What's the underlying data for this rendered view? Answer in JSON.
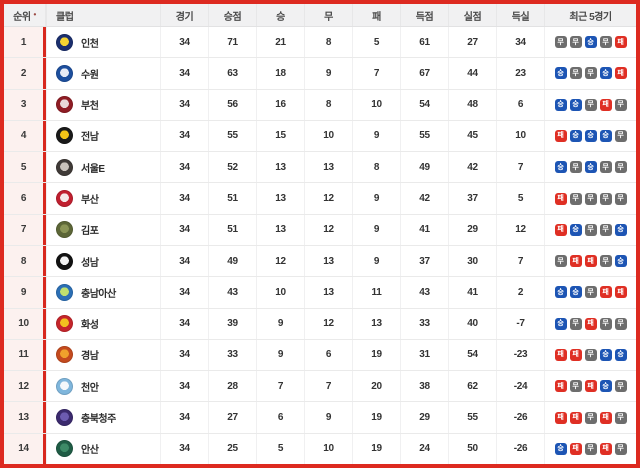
{
  "frame_color": "#dd2a20",
  "table": {
    "sort_indicator": "•",
    "columns": [
      {
        "key": "rank",
        "label": "순위",
        "sortable": true
      },
      {
        "key": "club",
        "label": "클럽"
      },
      {
        "key": "played",
        "label": "경기"
      },
      {
        "key": "points",
        "label": "승점"
      },
      {
        "key": "wins",
        "label": "승"
      },
      {
        "key": "draws",
        "label": "무"
      },
      {
        "key": "losses",
        "label": "패"
      },
      {
        "key": "goals_for",
        "label": "득점"
      },
      {
        "key": "goals_against",
        "label": "실점"
      },
      {
        "key": "goal_diff",
        "label": "득실"
      },
      {
        "key": "recent",
        "label": "최근 5경기"
      }
    ],
    "result_colors": {
      "승": "#1d55b4",
      "무": "#6d6d6d",
      "패": "#df2f24"
    },
    "result_names": {
      "승": "win",
      "무": "draw",
      "패": "loss"
    },
    "rows": [
      {
        "rank": 1,
        "club": "인천",
        "played": 34,
        "points": 71,
        "wins": 21,
        "draws": 8,
        "losses": 5,
        "goals_for": 61,
        "goals_against": 27,
        "goal_diff": 34,
        "recent": [
          "무",
          "무",
          "승",
          "무",
          "패"
        ],
        "logo_colors": [
          "#1b2f6e",
          "#f5d431"
        ]
      },
      {
        "rank": 2,
        "club": "수원",
        "played": 34,
        "points": 63,
        "wins": 18,
        "draws": 9,
        "losses": 7,
        "goals_for": 67,
        "goals_against": 44,
        "goal_diff": 23,
        "recent": [
          "승",
          "무",
          "무",
          "승",
          "패"
        ],
        "logo_colors": [
          "#1d4f9e",
          "#e8ecf5"
        ]
      },
      {
        "rank": 3,
        "club": "부천",
        "played": 34,
        "points": 56,
        "wins": 16,
        "draws": 8,
        "losses": 10,
        "goals_for": 54,
        "goals_against": 48,
        "goal_diff": 6,
        "recent": [
          "승",
          "승",
          "무",
          "패",
          "무"
        ],
        "logo_colors": [
          "#8f1c24",
          "#e9d8d8"
        ]
      },
      {
        "rank": 4,
        "club": "전남",
        "played": 34,
        "points": 55,
        "wins": 15,
        "draws": 10,
        "losses": 9,
        "goals_for": 55,
        "goals_against": 45,
        "goal_diff": 10,
        "recent": [
          "패",
          "승",
          "승",
          "승",
          "무"
        ],
        "logo_colors": [
          "#1a1a1a",
          "#f3c317"
        ]
      },
      {
        "rank": 5,
        "club": "서울E",
        "played": 34,
        "points": 52,
        "wins": 13,
        "draws": 13,
        "losses": 8,
        "goals_for": 49,
        "goals_against": 42,
        "goal_diff": 7,
        "recent": [
          "승",
          "무",
          "승",
          "무",
          "무"
        ],
        "logo_colors": [
          "#3f3a37",
          "#c9c2bb"
        ]
      },
      {
        "rank": 6,
        "club": "부산",
        "played": 34,
        "points": 51,
        "wins": 13,
        "draws": 12,
        "losses": 9,
        "goals_for": 42,
        "goals_against": 37,
        "goal_diff": 5,
        "recent": [
          "패",
          "무",
          "무",
          "무",
          "무"
        ],
        "logo_colors": [
          "#c01f2f",
          "#f4e8e8"
        ]
      },
      {
        "rank": 7,
        "club": "김포",
        "played": 34,
        "points": 51,
        "wins": 13,
        "draws": 12,
        "losses": 9,
        "goals_for": 41,
        "goals_against": 29,
        "goal_diff": 12,
        "recent": [
          "패",
          "승",
          "무",
          "무",
          "승"
        ],
        "logo_colors": [
          "#5c6637",
          "#8a9456"
        ]
      },
      {
        "rank": 8,
        "club": "성남",
        "played": 34,
        "points": 49,
        "wins": 12,
        "draws": 13,
        "losses": 9,
        "goals_for": 37,
        "goals_against": 30,
        "goal_diff": 7,
        "recent": [
          "무",
          "패",
          "패",
          "무",
          "승"
        ],
        "logo_colors": [
          "#121212",
          "#f2f2f2"
        ]
      },
      {
        "rank": 9,
        "club": "충남아산",
        "played": 34,
        "points": 43,
        "wins": 10,
        "draws": 13,
        "losses": 11,
        "goals_for": 43,
        "goals_against": 41,
        "goal_diff": 2,
        "recent": [
          "승",
          "승",
          "무",
          "패",
          "패"
        ],
        "logo_colors": [
          "#2b6fb5",
          "#bfe06e"
        ]
      },
      {
        "rank": 10,
        "club": "화성",
        "played": 34,
        "points": 39,
        "wins": 9,
        "draws": 12,
        "losses": 13,
        "goals_for": 33,
        "goals_against": 40,
        "goal_diff": -7,
        "recent": [
          "승",
          "무",
          "패",
          "무",
          "무"
        ],
        "logo_colors": [
          "#c5252b",
          "#f2c21f"
        ]
      },
      {
        "rank": 11,
        "club": "경남",
        "played": 34,
        "points": 33,
        "wins": 9,
        "draws": 6,
        "losses": 19,
        "goals_for": 31,
        "goals_against": 54,
        "goal_diff": -23,
        "recent": [
          "패",
          "패",
          "무",
          "승",
          "승"
        ],
        "logo_colors": [
          "#c44a1e",
          "#f0a12c"
        ]
      },
      {
        "rank": 12,
        "club": "천안",
        "played": 34,
        "points": 28,
        "wins": 7,
        "draws": 7,
        "losses": 20,
        "goals_for": 38,
        "goals_against": 62,
        "goal_diff": -24,
        "recent": [
          "패",
          "무",
          "패",
          "승",
          "무"
        ],
        "logo_colors": [
          "#7fb6dc",
          "#f4f8fb"
        ]
      },
      {
        "rank": 13,
        "club": "충북청주",
        "played": 34,
        "points": 27,
        "wins": 6,
        "draws": 9,
        "losses": 19,
        "goals_for": 29,
        "goals_against": 55,
        "goal_diff": -26,
        "recent": [
          "패",
          "패",
          "무",
          "패",
          "무"
        ],
        "logo_colors": [
          "#3b2a6e",
          "#6c5bb0"
        ]
      },
      {
        "rank": 14,
        "club": "안산",
        "played": 34,
        "points": 25,
        "wins": 5,
        "draws": 10,
        "losses": 19,
        "goals_for": 24,
        "goals_against": 50,
        "goal_diff": -26,
        "recent": [
          "승",
          "패",
          "무",
          "패",
          "무"
        ],
        "logo_colors": [
          "#1f5c45",
          "#3d8a67"
        ]
      }
    ]
  }
}
